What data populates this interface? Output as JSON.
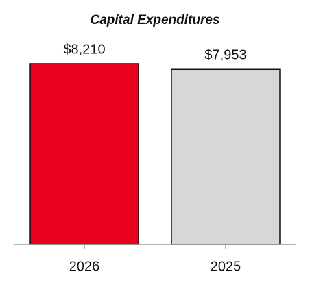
{
  "chart_data": {
    "type": "bar",
    "title": "Capital Expenditures",
    "categories": [
      "2026",
      "2025"
    ],
    "values": [
      8210,
      7953
    ],
    "value_labels": [
      "$8,210",
      "$7,953"
    ],
    "colors": [
      "#e8001f",
      "#d6d8d8"
    ]
  }
}
